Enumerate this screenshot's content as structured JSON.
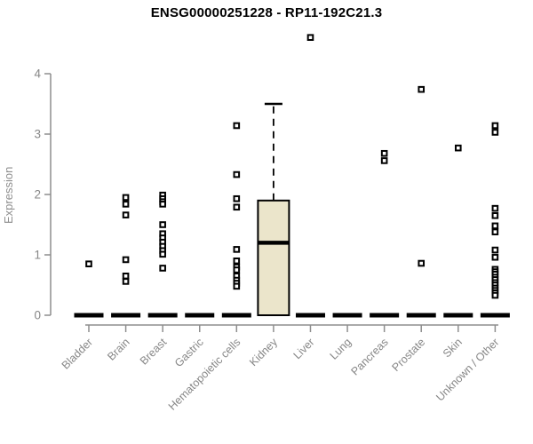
{
  "title": "ENSG00000251228 - RP11-192C21.3",
  "chart_data": {
    "type": "boxplot",
    "title": "ENSG00000251228 - RP11-192C21.3",
    "xlabel": "",
    "ylabel": "Expression",
    "ylim": [
      0,
      4
    ],
    "yticks": [
      0,
      1,
      2,
      3,
      4
    ],
    "grid": false,
    "legend": "none",
    "categories": [
      "Bladder",
      "Brain",
      "Breast",
      "Gastric",
      "Hematopoietic cells",
      "Kidney",
      "Liver",
      "Lung",
      "Pancreas",
      "Prostate",
      "Skin",
      "Unknown / Other"
    ],
    "zero_bar": [
      true,
      true,
      true,
      true,
      true,
      false,
      true,
      true,
      true,
      true,
      true,
      true
    ],
    "points": [
      [
        0.85
      ],
      [
        1.95,
        1.84,
        1.66,
        0.92,
        0.65,
        0.56
      ],
      [
        1.99,
        1.93,
        1.88,
        1.84,
        1.5,
        1.35,
        1.28,
        1.21,
        1.14,
        1.07,
        1.01,
        0.78
      ],
      [],
      [
        3.14,
        2.33,
        1.93,
        1.79,
        1.09,
        0.9,
        0.8,
        0.75,
        0.65,
        0.58,
        0.53,
        0.48
      ],
      [],
      [
        4.6
      ],
      [],
      [
        2.68,
        2.56
      ],
      [
        3.74,
        0.86
      ],
      [
        2.77
      ],
      [
        3.14,
        3.03,
        1.77,
        1.65,
        1.48,
        1.38,
        1.08,
        0.96,
        0.76,
        0.72,
        0.68,
        0.63,
        0.59,
        0.54,
        0.5,
        0.45,
        0.41,
        0.37,
        0.33
      ]
    ],
    "boxes": [
      {
        "category": "Kidney",
        "q1": 0,
        "median": 1.2,
        "q3": 1.9,
        "lower_whisker": 0,
        "upper_whisker": 3.5
      }
    ],
    "colors": {
      "box_fill": "#ebe5cb",
      "box_stroke": "#000000",
      "median": "#000000",
      "axis": "#8e8e8e",
      "tick_label": "#878787",
      "point": "#000000",
      "title": "#000000",
      "zero_bar": "#000000"
    }
  }
}
